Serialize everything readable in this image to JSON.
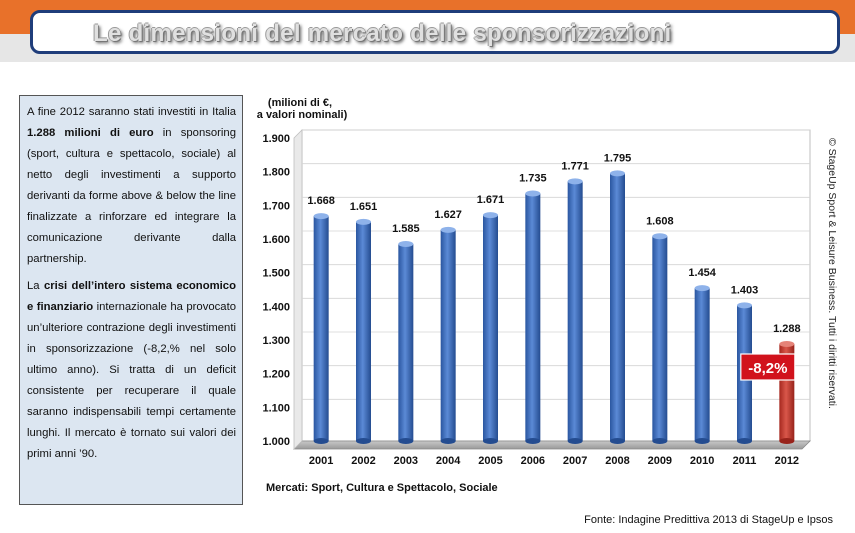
{
  "header": {
    "title": "Le dimensioni del mercato delle sponsorizzazioni"
  },
  "colors": {
    "accent_orange": "#e8712a",
    "frame_navy": "#1f3d7a",
    "bar_blue": "#3f6fbf",
    "bar_red": "#c0392b",
    "textbox_bg": "#dce6f1"
  },
  "textbox": {
    "p1_a": "A fine 2012 saranno stati investiti in Italia ",
    "p1_bold": "1.288 milioni di euro",
    "p1_b": " in sponsoring (sport, cultura e spettacolo, sociale) al netto degli investimenti a supporto derivanti da forme above & below the line finalizzate a rinforzare ed integrare la comunicazione derivante dalla partnership.",
    "p2_a": "La ",
    "p2_bold": "crisi dell’intero sistema economico e finanziario",
    "p2_b": " internazionale ha provocato un’ulteriore contrazione degli investimenti in sponsorizzazione (-8,2,% nel solo ultimo anno). Si tratta di un deficit consistente per recuperare il quale saranno indispensabili tempi certamente lunghi. Il mercato è tornato sui valori dei primi anni ’90."
  },
  "copyright": "© StageUp Sport & Leisure Business. Tutti i diritti riservati.",
  "footer": {
    "source": "Fonte: Indagine Predittiva 2013 di StageUp e Ipsos"
  },
  "chart_data": {
    "type": "bar",
    "unit_label_1": "(milioni di €,",
    "unit_label_2": "a valori nominali)",
    "xlabel": "Mercati: Sport, Cultura e Spettacolo, Sociale",
    "categories": [
      "2001",
      "2002",
      "2003",
      "2004",
      "2005",
      "2006",
      "2007",
      "2008",
      "2009",
      "2010",
      "2011",
      "2012"
    ],
    "values": [
      1668,
      1651,
      1585,
      1627,
      1671,
      1735,
      1771,
      1795,
      1608,
      1454,
      1403,
      1288
    ],
    "value_labels": [
      "1.668",
      "1.651",
      "1.585",
      "1.627",
      "1.671",
      "1.735",
      "1.771",
      "1.795",
      "1.608",
      "1.454",
      "1.403",
      "1.288"
    ],
    "highlight_index": 11,
    "ylim": [
      1000,
      1900
    ],
    "yticks": [
      1000,
      1100,
      1200,
      1300,
      1400,
      1500,
      1600,
      1700,
      1800,
      1900
    ],
    "ytick_labels": [
      "1.000",
      "1.100",
      "1.200",
      "1.300",
      "1.400",
      "1.500",
      "1.600",
      "1.700",
      "1.800",
      "1.900"
    ],
    "callout": "-8,2%"
  }
}
